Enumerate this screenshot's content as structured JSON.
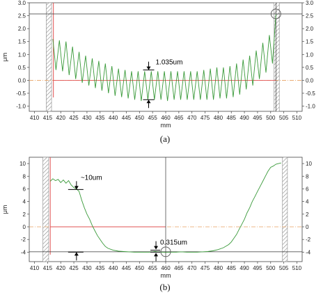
{
  "chart_data": [
    {
      "type": "line",
      "panel": "(a)",
      "xlabel": "mm",
      "ylabel": "μm",
      "xlim": [
        408,
        512
      ],
      "ylim": [
        -1.2,
        3.0
      ],
      "xticks": [
        410,
        415,
        420,
        425,
        430,
        435,
        440,
        445,
        450,
        455,
        460,
        465,
        470,
        475,
        480,
        485,
        490,
        495,
        500,
        505,
        510
      ],
      "yticks": [
        -1.0,
        -0.5,
        0.0,
        0.5,
        1.0,
        1.5,
        2.0,
        2.5,
        3.0
      ],
      "ytick_labels": [
        "-1.0",
        "-0.5",
        "0.0",
        "0.5",
        "1.0",
        "1.5",
        "2.0",
        "2.5",
        "3.0"
      ],
      "series": [
        {
          "x": [
            417.0,
            418.2,
            419.5,
            420.7,
            422.0,
            423.2,
            424.5,
            425.7,
            427.0,
            428.2,
            429.5,
            430.7,
            432.0,
            433.2,
            434.5,
            435.7,
            437.0,
            438.2,
            439.5,
            440.7,
            442.0,
            443.2,
            444.5,
            445.7,
            447.0,
            448.2,
            449.5,
            450.7,
            452.0,
            453.2,
            454.5,
            455.7,
            457.0,
            458.2,
            459.5,
            460.7,
            462.0,
            463.2,
            464.5,
            465.7,
            467.0,
            468.2,
            469.5,
            470.7,
            472.0,
            473.2,
            474.5,
            475.7,
            477.0,
            478.2,
            479.5,
            480.7,
            482.0,
            483.2,
            484.5,
            485.7,
            487.0,
            488.2,
            489.5,
            490.7,
            492.0,
            493.2,
            494.5,
            495.7,
            497.0,
            498.2,
            499.5,
            500.7,
            502.0
          ],
          "y": [
            1.6,
            0.4,
            1.55,
            0.35,
            1.5,
            0.2,
            1.3,
            0.05,
            1.1,
            -0.1,
            0.95,
            -0.2,
            0.85,
            -0.3,
            0.75,
            -0.4,
            0.65,
            -0.5,
            0.55,
            -0.6,
            0.45,
            -0.65,
            0.4,
            -0.7,
            0.35,
            -0.75,
            0.35,
            -0.8,
            0.35,
            -0.75,
            0.35,
            -0.75,
            0.35,
            -0.75,
            0.35,
            -0.8,
            0.35,
            -0.75,
            0.35,
            -0.75,
            0.35,
            -0.75,
            0.35,
            -0.75,
            0.35,
            -0.75,
            0.4,
            -0.75,
            0.45,
            -0.75,
            0.5,
            -0.7,
            0.5,
            -0.7,
            0.55,
            -0.65,
            0.65,
            -0.55,
            0.8,
            -0.35,
            0.95,
            -0.2,
            1.15,
            0.05,
            1.45,
            0.3,
            1.75,
            0.65,
            2.55
          ]
        }
      ],
      "annotations": [
        {
          "text": "1.035um",
          "x": 453.5,
          "y_top": 0.4,
          "y_bottom": -0.75
        }
      ],
      "hatched_x": [
        414.5,
        416.5,
        501.3,
        503.3
      ],
      "red_cursor_x": 417.2,
      "cursor_x": 502.0,
      "cursor_y": 2.57
    },
    {
      "type": "line",
      "panel": "(b)",
      "xlabel": "mm",
      "ylabel": "μm",
      "xlim": [
        408,
        512
      ],
      "ylim": [
        -5.5,
        11
      ],
      "xticks": [
        410,
        415,
        420,
        425,
        430,
        435,
        440,
        445,
        450,
        455,
        460,
        465,
        470,
        475,
        480,
        485,
        490,
        495,
        500,
        505,
        510
      ],
      "yticks": [
        -4,
        -2,
        0,
        2,
        4,
        6,
        8,
        10
      ],
      "ytick_labels": [
        "-4",
        "-2",
        "0",
        "2",
        "4",
        "6",
        "8",
        "10"
      ],
      "series": [
        {
          "x": [
            416.0,
            417.0,
            418.0,
            419.0,
            420.0,
            421.0,
            422.0,
            423.0,
            424.0,
            425.0,
            426.0,
            427.0,
            428.0,
            429.0,
            430.0,
            431.0,
            432.0,
            433.0,
            434.0,
            435.0,
            436.0,
            437.0,
            438.0,
            440.0,
            442.0,
            444.0,
            446.0,
            448.0,
            450.0,
            452.0,
            454.0,
            456.0,
            458.0,
            460.0,
            462.0,
            464.0,
            466.0,
            468.0,
            470.0,
            472.0,
            474.0,
            476.0,
            478.0,
            480.0,
            482.0,
            484.0,
            485.0,
            486.0,
            487.0,
            488.0,
            489.0,
            490.0,
            491.0,
            492.0,
            493.0,
            494.0,
            495.0,
            496.0,
            497.0,
            498.0,
            499.0,
            500.0,
            501.0,
            502.0,
            503.0,
            504.0
          ],
          "y": [
            7.2,
            7.6,
            7.3,
            7.5,
            7.0,
            7.4,
            6.9,
            7.3,
            6.6,
            6.2,
            6.0,
            5.6,
            4.2,
            3.0,
            2.0,
            1.2,
            0.2,
            -0.6,
            -1.4,
            -2.0,
            -2.6,
            -3.1,
            -3.4,
            -3.7,
            -3.85,
            -3.9,
            -3.95,
            -4.0,
            -4.0,
            -4.0,
            -4.0,
            -3.9,
            -4.0,
            -4.05,
            -4.0,
            -4.0,
            -3.95,
            -4.0,
            -4.0,
            -4.0,
            -3.95,
            -3.9,
            -3.8,
            -3.6,
            -3.3,
            -2.8,
            -2.4,
            -1.8,
            -1.2,
            -0.4,
            0.4,
            1.2,
            2.2,
            3.0,
            4.0,
            4.8,
            5.6,
            6.4,
            7.2,
            8.0,
            8.8,
            9.4,
            9.6,
            9.9,
            10.0,
            10.1
          ]
        }
      ],
      "annotations": [
        {
          "text": "~10um",
          "x": 426.0,
          "y_top": 5.9,
          "y_bottom": -4.0
        },
        {
          "text": "0.315um",
          "x": 456.3,
          "y_top": -3.7,
          "y_bottom": -4.0
        }
      ],
      "hatched_x": [
        413.2,
        415.4,
        504.5,
        506.4
      ],
      "red_cursor_x": 416.0,
      "cursor_x": 460.0,
      "cursor_y": -3.95
    }
  ],
  "captions": [
    "(a)",
    "(b)"
  ]
}
